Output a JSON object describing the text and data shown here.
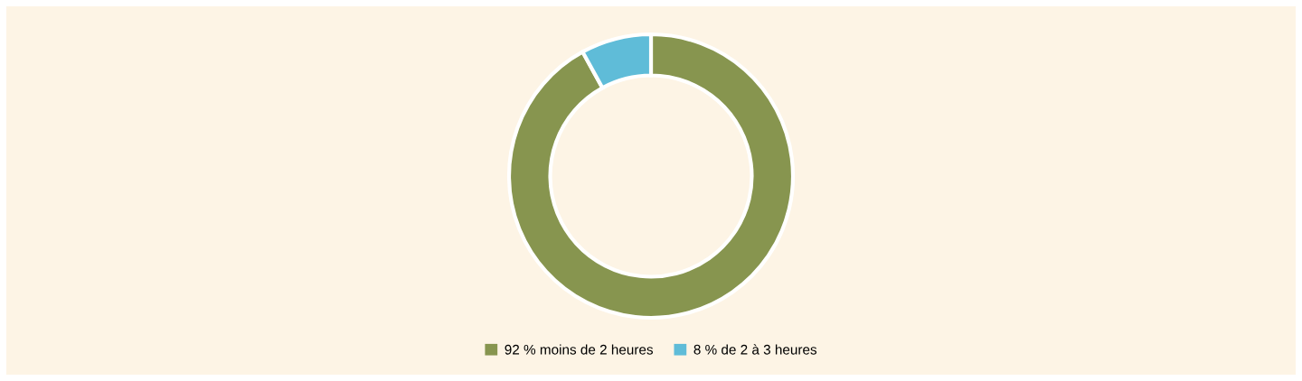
{
  "chart_data": {
    "type": "donut",
    "categories": [
      "moins de 2 heures",
      "de 2 à 3 heures"
    ],
    "values": [
      92,
      8
    ],
    "value_labels": [
      "92 %",
      "8 %"
    ],
    "colors": [
      "#87954f",
      "#5fbcd8"
    ],
    "legend": "bottom"
  }
}
